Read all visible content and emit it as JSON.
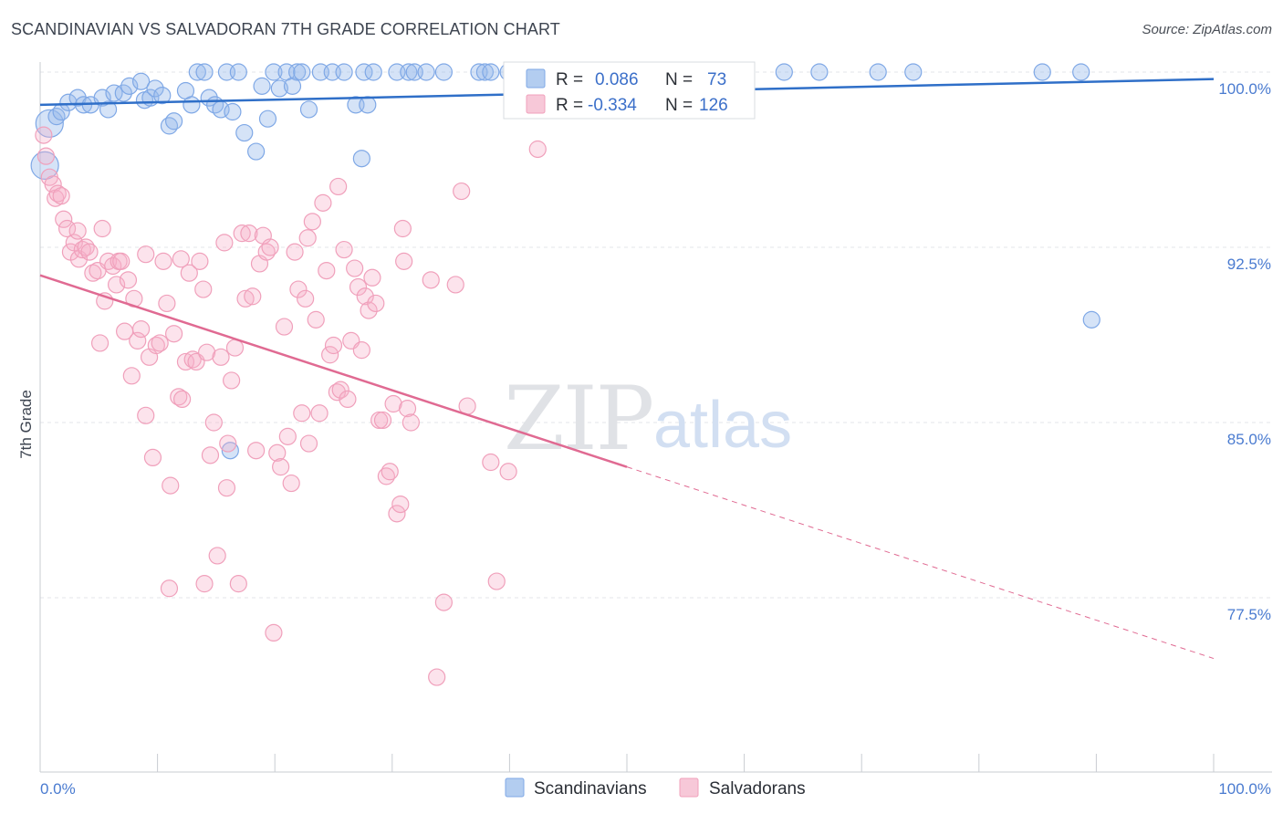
{
  "title": "SCANDINAVIAN VS SALVADORAN 7TH GRADE CORRELATION CHART",
  "source": "Source: ZipAtlas.com",
  "watermark": {
    "zip": "ZIP",
    "atlas": "atlas"
  },
  "legend": {
    "rows": [
      {
        "r_label": "R =",
        "r_value": "0.086",
        "n_label": "N =",
        "n_value": "73",
        "color": "#7fa8e6"
      },
      {
        "r_label": "R =",
        "r_value": "-0.334",
        "n_label": "N =",
        "n_value": "126",
        "color": "#f0a0bb"
      }
    ]
  },
  "bottom_legend": [
    {
      "label": "Scandinavians",
      "color": "#7fa8e6"
    },
    {
      "label": "Salvadorans",
      "color": "#f0a0bb"
    }
  ],
  "chart_data": {
    "type": "scatter",
    "title": "SCANDINAVIAN VS SALVADORAN 7TH GRADE CORRELATION CHART",
    "xlabel": "",
    "ylabel": "7th Grade",
    "xlim": [
      0,
      100
    ],
    "ylim": [
      70,
      100.6
    ],
    "x_tick_labels": [
      "0.0%",
      "100.0%"
    ],
    "y_ticks": [
      100.0,
      92.5,
      85.0,
      77.5
    ],
    "y_tick_labels": [
      "100.0%",
      "92.5%",
      "85.0%",
      "77.5%"
    ],
    "series": [
      {
        "name": "Scandinavians",
        "color": "#7fa8e6",
        "line_color": "#2f6fc8",
        "trend": {
          "x0": 0,
          "y0": 98.6,
          "x1": 100,
          "y1": 99.7,
          "dashed_from": null
        },
        "points": [
          [
            0.4,
            96.0
          ],
          [
            0.8,
            97.8
          ],
          [
            1.4,
            98.1
          ],
          [
            1.8,
            98.3
          ],
          [
            2.4,
            98.7
          ],
          [
            3.2,
            98.9
          ],
          [
            3.7,
            98.6
          ],
          [
            4.3,
            98.6
          ],
          [
            5.3,
            98.9
          ],
          [
            5.8,
            98.4
          ],
          [
            6.3,
            99.1
          ],
          [
            7.1,
            99.1
          ],
          [
            7.6,
            99.4
          ],
          [
            8.6,
            99.6
          ],
          [
            8.9,
            98.8
          ],
          [
            9.4,
            98.9
          ],
          [
            9.8,
            99.3
          ],
          [
            10.4,
            99.0
          ],
          [
            11.0,
            97.7
          ],
          [
            11.4,
            97.9
          ],
          [
            12.4,
            99.2
          ],
          [
            12.9,
            98.6
          ],
          [
            13.4,
            100.0
          ],
          [
            14.0,
            100.0
          ],
          [
            14.4,
            98.9
          ],
          [
            14.9,
            98.6
          ],
          [
            15.4,
            98.4
          ],
          [
            15.9,
            100.0
          ],
          [
            16.4,
            98.3
          ],
          [
            16.9,
            100.0
          ],
          [
            17.4,
            97.4
          ],
          [
            18.4,
            96.6
          ],
          [
            18.9,
            99.4
          ],
          [
            19.4,
            98.0
          ],
          [
            19.9,
            100.0
          ],
          [
            20.4,
            99.3
          ],
          [
            21.0,
            100.0
          ],
          [
            21.5,
            99.4
          ],
          [
            21.9,
            100.0
          ],
          [
            22.3,
            100.0
          ],
          [
            22.9,
            98.4
          ],
          [
            23.9,
            100.0
          ],
          [
            24.9,
            100.0
          ],
          [
            25.9,
            100.0
          ],
          [
            26.9,
            98.6
          ],
          [
            27.4,
            96.3
          ],
          [
            27.9,
            98.6
          ],
          [
            27.6,
            100.0
          ],
          [
            28.4,
            100.0
          ],
          [
            30.4,
            100.0
          ],
          [
            31.4,
            100.0
          ],
          [
            31.9,
            100.0
          ],
          [
            32.9,
            100.0
          ],
          [
            34.4,
            100.0
          ],
          [
            37.4,
            100.0
          ],
          [
            37.9,
            100.0
          ],
          [
            38.4,
            100.0
          ],
          [
            39.9,
            100.0
          ],
          [
            41.9,
            100.0
          ],
          [
            43.9,
            100.0
          ],
          [
            46.9,
            100.0
          ],
          [
            47.9,
            100.0
          ],
          [
            51.9,
            100.0
          ],
          [
            52.4,
            100.0
          ],
          [
            53.9,
            100.0
          ],
          [
            63.4,
            100.0
          ],
          [
            66.4,
            100.0
          ],
          [
            71.4,
            100.0
          ],
          [
            74.4,
            100.0
          ],
          [
            85.4,
            100.0
          ],
          [
            88.7,
            100.0
          ],
          [
            89.6,
            89.4
          ],
          [
            16.2,
            83.8
          ]
        ]
      },
      {
        "name": "Salvadorans",
        "color": "#f0a0bb",
        "line_color": "#e06a92",
        "trend": {
          "x0": 0,
          "y0": 91.3,
          "x1": 100,
          "y1": 74.9,
          "dashed_from": 50
        },
        "points": [
          [
            0.3,
            97.3
          ],
          [
            0.5,
            96.4
          ],
          [
            0.8,
            95.5
          ],
          [
            1.1,
            95.2
          ],
          [
            1.3,
            94.6
          ],
          [
            1.5,
            94.8
          ],
          [
            1.8,
            94.7
          ],
          [
            2.0,
            93.7
          ],
          [
            2.3,
            93.3
          ],
          [
            2.6,
            92.3
          ],
          [
            2.9,
            92.7
          ],
          [
            3.2,
            93.2
          ],
          [
            3.3,
            92.0
          ],
          [
            3.6,
            92.4
          ],
          [
            3.9,
            92.5
          ],
          [
            4.2,
            92.3
          ],
          [
            4.5,
            91.4
          ],
          [
            4.9,
            91.5
          ],
          [
            5.1,
            88.4
          ],
          [
            5.3,
            93.3
          ],
          [
            5.5,
            90.2
          ],
          [
            5.8,
            91.9
          ],
          [
            6.2,
            91.7
          ],
          [
            6.5,
            90.9
          ],
          [
            6.7,
            91.9
          ],
          [
            6.9,
            91.9
          ],
          [
            7.2,
            88.9
          ],
          [
            7.5,
            91.1
          ],
          [
            7.8,
            87.0
          ],
          [
            8.0,
            90.3
          ],
          [
            8.3,
            88.5
          ],
          [
            8.6,
            89.0
          ],
          [
            9.0,
            85.3
          ],
          [
            9.3,
            87.8
          ],
          [
            9.6,
            83.5
          ],
          [
            9.9,
            88.3
          ],
          [
            10.2,
            88.4
          ],
          [
            10.5,
            91.9
          ],
          [
            10.8,
            90.1
          ],
          [
            11.1,
            82.3
          ],
          [
            11.4,
            88.8
          ],
          [
            11.8,
            86.1
          ],
          [
            12.1,
            86.0
          ],
          [
            12.4,
            87.6
          ],
          [
            12.7,
            91.4
          ],
          [
            13.0,
            87.7
          ],
          [
            13.3,
            87.6
          ],
          [
            13.6,
            91.9
          ],
          [
            13.9,
            90.7
          ],
          [
            14.2,
            88.0
          ],
          [
            14.5,
            83.6
          ],
          [
            14.8,
            85.0
          ],
          [
            15.1,
            79.3
          ],
          [
            15.4,
            87.8
          ],
          [
            15.7,
            92.7
          ],
          [
            16.0,
            84.1
          ],
          [
            16.3,
            86.8
          ],
          [
            16.6,
            88.2
          ],
          [
            16.9,
            78.1
          ],
          [
            17.2,
            93.1
          ],
          [
            17.5,
            90.3
          ],
          [
            17.8,
            93.1
          ],
          [
            18.1,
            90.4
          ],
          [
            18.4,
            83.8
          ],
          [
            18.7,
            91.8
          ],
          [
            19.0,
            93.0
          ],
          [
            19.3,
            92.3
          ],
          [
            19.6,
            92.5
          ],
          [
            19.9,
            76.0
          ],
          [
            20.2,
            83.7
          ],
          [
            20.5,
            83.1
          ],
          [
            20.8,
            89.1
          ],
          [
            21.1,
            84.4
          ],
          [
            21.4,
            82.4
          ],
          [
            21.7,
            92.3
          ],
          [
            22.0,
            90.7
          ],
          [
            22.3,
            85.4
          ],
          [
            22.6,
            90.3
          ],
          [
            22.9,
            84.1
          ],
          [
            23.2,
            93.6
          ],
          [
            23.5,
            89.4
          ],
          [
            23.8,
            85.4
          ],
          [
            24.1,
            94.4
          ],
          [
            24.4,
            91.5
          ],
          [
            24.7,
            87.9
          ],
          [
            25.0,
            88.3
          ],
          [
            25.3,
            86.3
          ],
          [
            25.6,
            86.4
          ],
          [
            25.9,
            92.4
          ],
          [
            26.2,
            86.0
          ],
          [
            26.5,
            88.5
          ],
          [
            26.8,
            91.6
          ],
          [
            27.1,
            90.8
          ],
          [
            27.4,
            88.1
          ],
          [
            27.7,
            90.4
          ],
          [
            28.0,
            89.8
          ],
          [
            28.3,
            91.2
          ],
          [
            28.6,
            90.1
          ],
          [
            28.9,
            85.1
          ],
          [
            29.2,
            85.1
          ],
          [
            29.5,
            82.7
          ],
          [
            29.8,
            82.9
          ],
          [
            30.1,
            85.8
          ],
          [
            30.4,
            81.1
          ],
          [
            30.7,
            81.5
          ],
          [
            31.0,
            91.9
          ],
          [
            31.3,
            85.6
          ],
          [
            31.6,
            85.0
          ],
          [
            33.3,
            91.1
          ],
          [
            33.8,
            74.1
          ],
          [
            34.4,
            77.3
          ],
          [
            35.4,
            90.9
          ],
          [
            36.4,
            85.7
          ],
          [
            38.4,
            83.3
          ],
          [
            38.9,
            78.2
          ],
          [
            39.9,
            82.9
          ],
          [
            42.4,
            96.7
          ],
          [
            11.0,
            77.9
          ],
          [
            14.0,
            78.1
          ],
          [
            15.9,
            82.2
          ],
          [
            12.0,
            92.0
          ],
          [
            9.0,
            92.2
          ],
          [
            22.8,
            92.9
          ],
          [
            25.4,
            95.1
          ],
          [
            30.9,
            93.3
          ],
          [
            35.9,
            94.9
          ]
        ]
      }
    ]
  }
}
